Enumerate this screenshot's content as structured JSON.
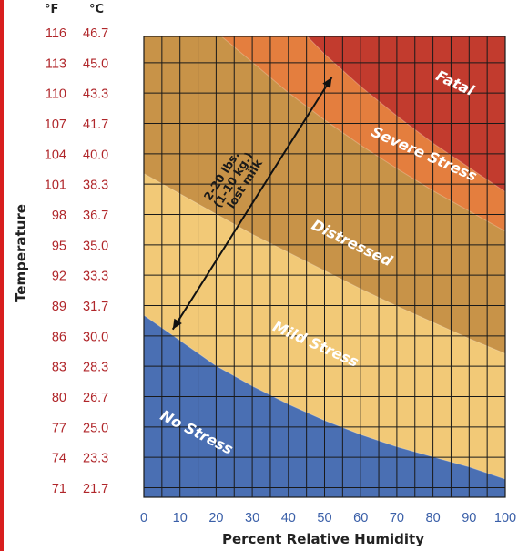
{
  "chart_data": {
    "type": "heatmap",
    "title": "",
    "xlabel": "Percent Relative Humidity",
    "ylabel": "Temperature",
    "units": {
      "fahrenheit": "°F",
      "celsius": "°C"
    },
    "x_ticks": [
      "0",
      "10",
      "20",
      "30",
      "40",
      "50",
      "60",
      "70",
      "80",
      "90",
      "100"
    ],
    "xlim": [
      0,
      100
    ],
    "ylim_f": [
      71,
      116
    ],
    "y_ticks_f": [
      "116",
      "113",
      "110",
      "107",
      "104",
      "101",
      "98",
      "95",
      "92",
      "89",
      "86",
      "83",
      "80",
      "77",
      "74",
      "71"
    ],
    "y_ticks_c": [
      "46.7",
      "45.0",
      "43.3",
      "41.7",
      "40.0",
      "38.3",
      "36.7",
      "35.0",
      "33.3",
      "31.7",
      "30.0",
      "28.3",
      "26.7",
      "25.0",
      "23.3",
      "21.7"
    ],
    "grid": true,
    "zones": [
      {
        "name": "No Stress",
        "color": "#4a6fb3"
      },
      {
        "name": "Mild Stress",
        "color": "#f2c977"
      },
      {
        "name": "Distressed",
        "color": "#c89348"
      },
      {
        "name": "Severe Stress",
        "color": "#e47e3e"
      },
      {
        "name": "Fatal",
        "color": "#c23b2e"
      }
    ],
    "boundaries": [
      {
        "between": "No Stress / Mild Stress",
        "points": [
          [
            0,
            88
          ],
          [
            10,
            85.5
          ],
          [
            20,
            83
          ],
          [
            30,
            81
          ],
          [
            40,
            79.2
          ],
          [
            50,
            77.6
          ],
          [
            60,
            76.2
          ],
          [
            70,
            75
          ],
          [
            80,
            74
          ],
          [
            90,
            73
          ],
          [
            100,
            71.8
          ]
        ]
      },
      {
        "between": "Mild Stress / Distressed",
        "points": [
          [
            0,
            102
          ],
          [
            10,
            100
          ],
          [
            20,
            98
          ],
          [
            30,
            96
          ],
          [
            40,
            94.2
          ],
          [
            50,
            92.4
          ],
          [
            60,
            90.6
          ],
          [
            70,
            88.9
          ],
          [
            80,
            87.3
          ],
          [
            90,
            85.7
          ],
          [
            100,
            84.2
          ]
        ]
      },
      {
        "between": "Distressed / Severe Stress",
        "points": [
          [
            20,
            116
          ],
          [
            30,
            113
          ],
          [
            40,
            110
          ],
          [
            50,
            107.3
          ],
          [
            60,
            104.8
          ],
          [
            70,
            102.5
          ],
          [
            80,
            100.3
          ],
          [
            90,
            98.3
          ],
          [
            100,
            96.3
          ]
        ]
      },
      {
        "between": "Severe Stress / Fatal",
        "points": [
          [
            44,
            116
          ],
          [
            50,
            113.8
          ],
          [
            60,
            110.6
          ],
          [
            70,
            107.7
          ],
          [
            80,
            105
          ],
          [
            90,
            102.6
          ],
          [
            100,
            100.2
          ]
        ]
      }
    ],
    "annotations": [
      {
        "text": [
          "2-20 lbs.",
          "(1-10 kg.)",
          "lost milk"
        ],
        "from": [
          8,
          86.6
        ],
        "to": [
          52,
          111.5
        ]
      }
    ]
  }
}
